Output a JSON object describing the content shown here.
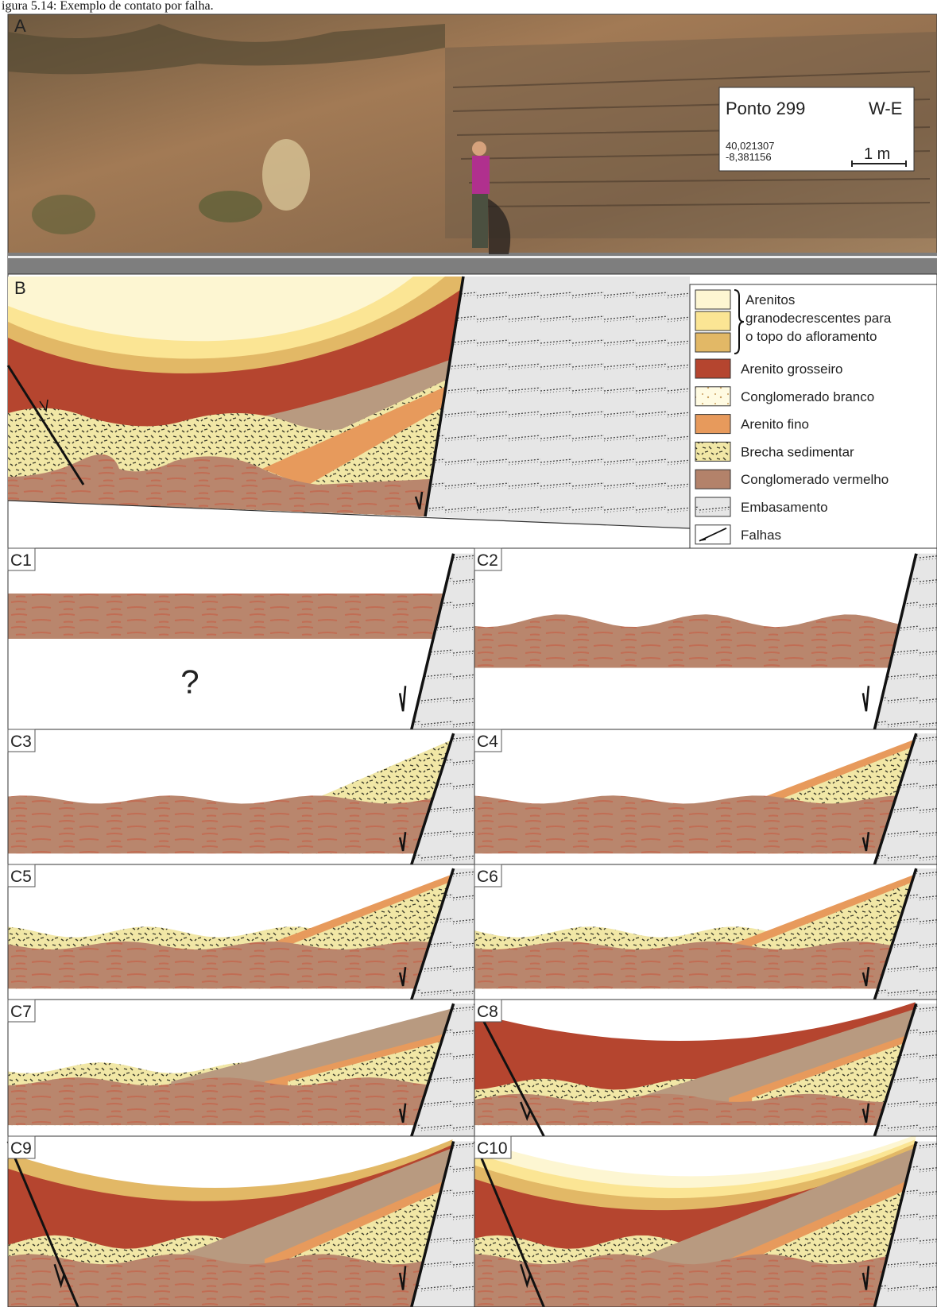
{
  "caption": "igura 5.14: Exemplo de contato por falha.",
  "photo": {
    "label": "A",
    "point": "Ponto 299",
    "direction": "W-E",
    "coordinates": [
      "40,021307",
      "-8,381156"
    ],
    "scale": "1 m"
  },
  "section": {
    "label": "B",
    "legend": {
      "sandstones": [
        "Arenitos",
        "granodecrescentes para",
        "o topo do afloramento"
      ],
      "items": [
        "Arenito grosseiro",
        "Conglomerado branco",
        "Arenito fino",
        "Brecha sedimentar",
        "Conglomerado vermelho",
        "Embasamento",
        "Falhas"
      ]
    }
  },
  "stages": [
    {
      "label": "C1",
      "note": "?"
    },
    {
      "label": "C2"
    },
    {
      "label": "C3"
    },
    {
      "label": "C4"
    },
    {
      "label": "C5"
    },
    {
      "label": "C6"
    },
    {
      "label": "C7"
    },
    {
      "label": "C8"
    },
    {
      "label": "C9"
    },
    {
      "label": "C10"
    }
  ]
}
